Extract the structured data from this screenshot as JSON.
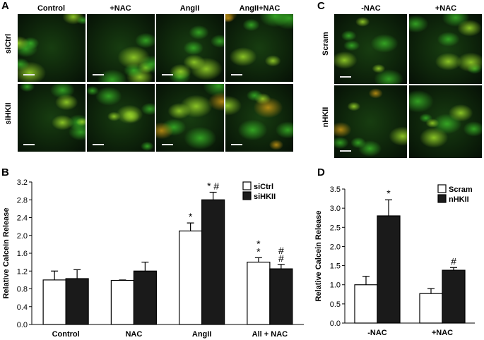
{
  "panelA": {
    "letter": "A",
    "columns": [
      "Control",
      "+NAC",
      "AngII",
      "AngII+NAC"
    ],
    "rows": [
      "siCtrl",
      "siHKII"
    ]
  },
  "panelC": {
    "letter": "C",
    "columns": [
      "-NAC",
      "+NAC"
    ],
    "rows": [
      "Scram",
      "nHKII"
    ]
  },
  "chart_data": [
    {
      "type": "bar",
      "panel": "B",
      "categories": [
        "Control",
        "NAC",
        "AngII",
        "All + NAC"
      ],
      "series": [
        {
          "name": "siCtrl",
          "values": [
            1.0,
            0.99,
            2.1,
            1.4
          ],
          "errors": [
            0.2,
            0.01,
            0.18,
            0.1
          ],
          "color": "#ffffff"
        },
        {
          "name": "siHKII",
          "values": [
            1.03,
            1.2,
            2.8,
            1.25
          ],
          "errors": [
            0.2,
            0.2,
            0.17,
            0.1
          ],
          "color": "#1a1a1a"
        }
      ],
      "annotations": [
        {
          "category": 2,
          "series": 0,
          "text": "*"
        },
        {
          "category": 2,
          "series": 1,
          "text": "* #"
        },
        {
          "category": 3,
          "series": 0,
          "text": "*\n*"
        },
        {
          "category": 3,
          "series": 1,
          "text": "#\n#"
        }
      ],
      "ylabel": "Relative Calcein Release",
      "ylim": [
        0,
        3.2
      ],
      "yticks": [
        "0.0",
        "0.4",
        "0.8",
        "1.2",
        "1.6",
        "2.0",
        "2.4",
        "2.8",
        "3.2"
      ],
      "legend": "top-right",
      "grid": false
    },
    {
      "type": "bar",
      "panel": "D",
      "categories": [
        "-NAC",
        "+NAC"
      ],
      "series": [
        {
          "name": "Scram",
          "values": [
            1.0,
            0.77
          ],
          "errors": [
            0.22,
            0.13
          ],
          "color": "#ffffff"
        },
        {
          "name": "nHKII",
          "values": [
            2.8,
            1.38
          ],
          "errors": [
            0.42,
            0.07
          ],
          "color": "#1a1a1a"
        }
      ],
      "annotations": [
        {
          "category": 0,
          "series": 1,
          "text": "*"
        },
        {
          "category": 1,
          "series": 1,
          "text": "#"
        }
      ],
      "ylabel": "Relative Calcein Release",
      "ylim": [
        0,
        3.5
      ],
      "yticks": [
        "0.0",
        "0.5",
        "1.0",
        "1.5",
        "2.0",
        "2.5",
        "3.0",
        "3.5"
      ],
      "legend": "top-right",
      "grid": false
    }
  ]
}
